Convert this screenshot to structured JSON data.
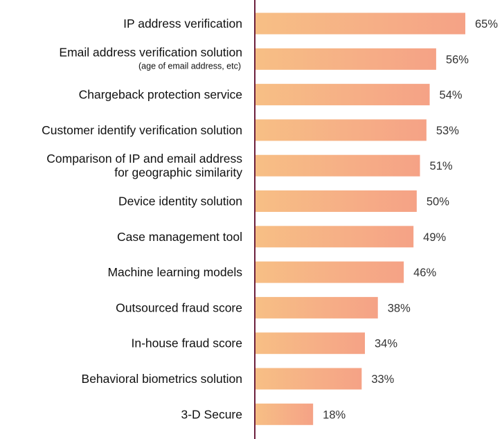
{
  "chart_data": {
    "type": "bar",
    "orientation": "horizontal",
    "title": "",
    "xlabel": "",
    "ylabel": "",
    "xlim": [
      0,
      65
    ],
    "grid": false,
    "value_suffix": "%",
    "categories": [
      {
        "lines": [
          "IP address verification"
        ],
        "sub": ""
      },
      {
        "lines": [
          "Email address verification solution"
        ],
        "sub": "(age of email address, etc)"
      },
      {
        "lines": [
          "Chargeback protection service"
        ],
        "sub": ""
      },
      {
        "lines": [
          "Customer identify verification solution"
        ],
        "sub": ""
      },
      {
        "lines": [
          "Comparison of IP and email address",
          "for geographic similarity"
        ],
        "sub": ""
      },
      {
        "lines": [
          "Device identity solution"
        ],
        "sub": ""
      },
      {
        "lines": [
          "Case management tool"
        ],
        "sub": ""
      },
      {
        "lines": [
          "Machine learning models"
        ],
        "sub": ""
      },
      {
        "lines": [
          "Outsourced fraud score"
        ],
        "sub": ""
      },
      {
        "lines": [
          "In-house fraud score"
        ],
        "sub": ""
      },
      {
        "lines": [
          "Behavioral biometrics solution"
        ],
        "sub": ""
      },
      {
        "lines": [
          "3-D Secure"
        ],
        "sub": ""
      }
    ],
    "values": [
      65,
      56,
      54,
      53,
      51,
      50,
      49,
      46,
      38,
      34,
      33,
      18
    ],
    "colors": {
      "bar_start": "#f7bf85",
      "bar_end": "#f5a286",
      "axis": "#6b1f3d"
    }
  }
}
